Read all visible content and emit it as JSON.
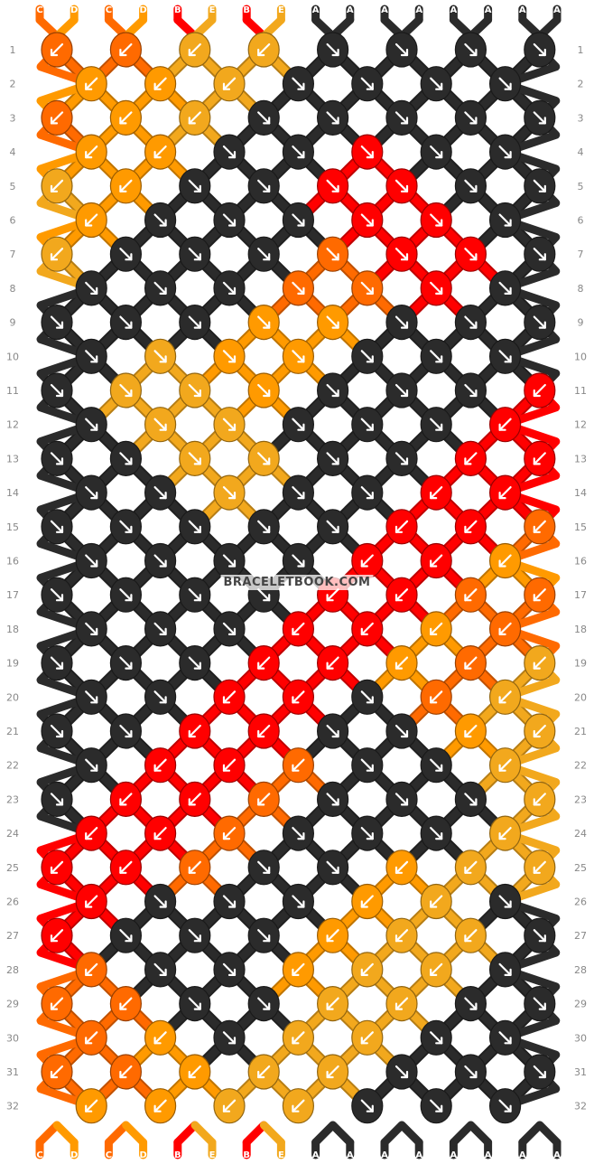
{
  "watermark": "BRACELETBOOK.COM",
  "strings": [
    "C",
    "D",
    "C",
    "D",
    "B",
    "E",
    "B",
    "E",
    "A",
    "A",
    "A",
    "A",
    "A",
    "A",
    "A",
    "A"
  ],
  "colors": {
    "A": "#2b2b2b",
    "B": "#ff0000",
    "C": "#ff6a00",
    "D": "#ff9a00",
    "E": "#f2a81d"
  },
  "row_count": 32,
  "rows": [
    "CDCDBEBEAAAAAAAA",
    "CCDDEBBEAAAAAAAA",
    "CCDDEEBBAAAAAAAA",
    "CCDDEEBAAAAAAAAA",
    "CCDDEEAAABAAAAAA",
    "CCDDEAAAAABAAAAA",
    "CCDDAAAAAAABAAAA",
    "CCDAAAAAAAAABAAA",
    "CCAAAAAAAAAAABAA",
    "CAAAAAAAAAAAAABA",
    "AAAAAAAAAAAAAAAB",
    "AAAAAAAAAAAAAAAB",
    "AAAAAAAAAAAAAABA",
    "AAAAAAAAAAAAABAA",
    "AAAAAAAAAAAABAAA",
    "AAAAAAAAAAABAAAA",
    "AAAAAAAAAABAAAAA",
    "AAAAAAAAABAAAAAA",
    "AAAAAAAABAAAAAAA",
    "AAAAAAABAAAAAAAA",
    "AAAAAABAAAAAAAAA",
    "AAAAABAAAAAAAAAA",
    "AAAABAAAAAAAAAAA",
    "AAABAAAAAAAAAAAA",
    "AABAAAAAAAAAAAAA",
    "ABAAAAAAAAAAAAAA",
    "BAAAAAAAAAAAAAAA",
    "BAAAAAAAAAAAAAAA",
    "ABAAAAAAAAAAAAAA",
    "AABAAAAAAAAAAAAA",
    "AAABAAAAAAAAAAAA",
    "AAAABAAAAAAAAAAA"
  ],
  "knots": [
    [
      "CL",
      "CL",
      "EL",
      "EL",
      "AR",
      "AR",
      "AR",
      "AR"
    ],
    [
      "DL",
      "DL",
      "EL",
      "AR",
      "AR",
      "AR",
      "AR"
    ],
    [
      "CL",
      "DL",
      "EL",
      "AR",
      "AR",
      "AR",
      "AR",
      "AR"
    ],
    [
      "DL",
      "DL",
      "AR",
      "AR",
      "BR",
      "AR",
      "AR"
    ],
    [
      "EL",
      "DL",
      "AR",
      "AR",
      "BR",
      "BR",
      "AR",
      "AR"
    ],
    [
      "DL",
      "AR",
      "AR",
      "AR",
      "BR",
      "BR",
      "AR"
    ],
    [
      "EL",
      "AR",
      "AR",
      "AR",
      "CR",
      "BR",
      "BR",
      "AR"
    ],
    [
      "AR",
      "AR",
      "AR",
      "CR",
      "CR",
      "BR",
      "AR"
    ],
    [
      "AR",
      "AR",
      "AR",
      "DR",
      "DR",
      "AR",
      "AR",
      "AR"
    ],
    [
      "AR",
      "ER",
      "DR",
      "DR",
      "AR",
      "AR",
      "AR"
    ],
    [
      "AR",
      "ER",
      "ER",
      "DR",
      "AR",
      "AR",
      "AR",
      "BL"
    ],
    [
      "AR",
      "ER",
      "ER",
      "AR",
      "AR",
      "AR",
      "BL"
    ],
    [
      "AR",
      "AR",
      "ER",
      "ER",
      "AR",
      "AR",
      "BL",
      "BL"
    ],
    [
      "AR",
      "AR",
      "ER",
      "AR",
      "AR",
      "BL",
      "BL"
    ],
    [
      "AR",
      "AR",
      "AR",
      "AR",
      "AR",
      "BL",
      "BL",
      "CL"
    ],
    [
      "AR",
      "AR",
      "AR",
      "AR",
      "BL",
      "BL",
      "DL"
    ],
    [
      "AR",
      "AR",
      "AR",
      "AR",
      "BL",
      "BL",
      "CL",
      "CL"
    ],
    [
      "AR",
      "AR",
      "AR",
      "BL",
      "BL",
      "DL",
      "CL"
    ],
    [
      "AR",
      "AR",
      "AR",
      "BL",
      "BL",
      "DL",
      "CL",
      "EL"
    ],
    [
      "AR",
      "AR",
      "BL",
      "BL",
      "AR",
      "CL",
      "EL"
    ],
    [
      "AR",
      "AR",
      "BL",
      "BL",
      "AR",
      "AR",
      "DL",
      "EL"
    ],
    [
      "AR",
      "BL",
      "BL",
      "CL",
      "AR",
      "AR",
      "EL"
    ],
    [
      "AR",
      "BL",
      "BL",
      "CL",
      "AR",
      "AR",
      "AR",
      "EL"
    ],
    [
      "BL",
      "BL",
      "CL",
      "AR",
      "AR",
      "AR",
      "EL"
    ],
    [
      "BL",
      "BL",
      "CL",
      "AR",
      "AR",
      "DL",
      "EL",
      "EL"
    ],
    [
      "BL",
      "AR",
      "AR",
      "AR",
      "DL",
      "EL",
      "AR"
    ],
    [
      "BL",
      "AR",
      "AR",
      "AR",
      "DL",
      "EL",
      "EL",
      "AR"
    ],
    [
      "CL",
      "AR",
      "AR",
      "DL",
      "EL",
      "EL",
      "AR"
    ],
    [
      "CL",
      "CL",
      "AR",
      "AR",
      "EL",
      "EL",
      "AR",
      "AR"
    ],
    [
      "CL",
      "DL",
      "AR",
      "EL",
      "EL",
      "AR",
      "AR"
    ],
    [
      "CL",
      "CL",
      "DL",
      "EL",
      "EL",
      "AR",
      "AR",
      "AR"
    ],
    [
      "DL",
      "DL",
      "EL",
      "EL",
      "AR",
      "AR",
      "AR"
    ]
  ]
}
